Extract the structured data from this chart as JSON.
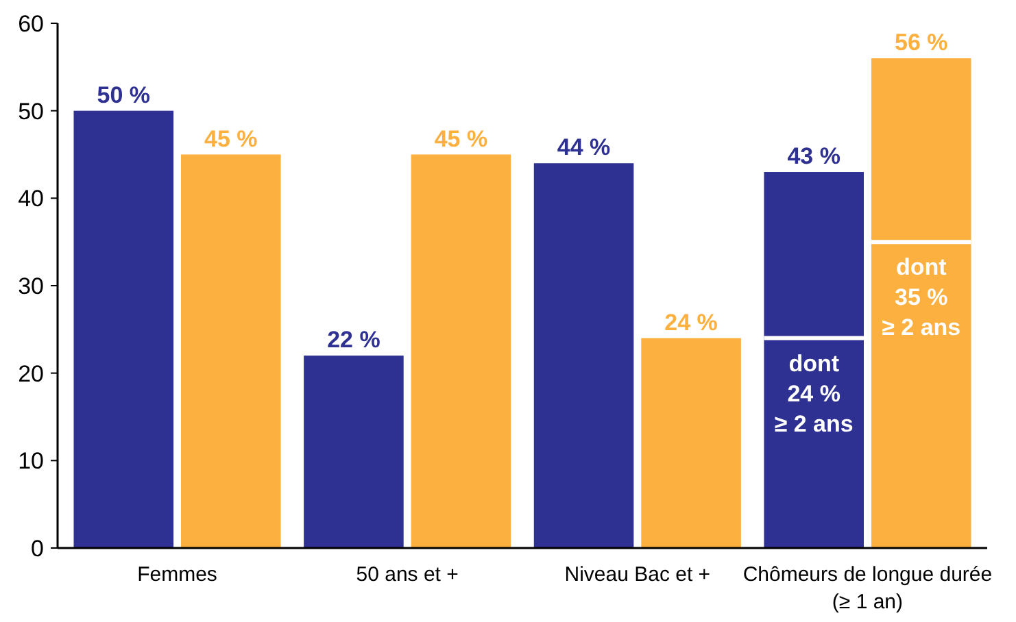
{
  "chart_data": {
    "type": "bar",
    "categories": [
      "Femmes",
      "50 ans et +",
      "Niveau Bac et +",
      "Chômeurs de longue durée (≥ 1 an)"
    ],
    "series": [
      {
        "color": "#2e3192",
        "values": [
          50,
          22,
          44,
          43
        ],
        "value_labels": [
          "50 %",
          "22 %",
          "44 %",
          "43 %"
        ]
      },
      {
        "color": "#fbb040",
        "values": [
          45,
          45,
          24,
          56
        ],
        "value_labels": [
          "45 %",
          "45 %",
          "24 %",
          "56 %"
        ]
      }
    ],
    "ylim": [
      0,
      60
    ],
    "yticks": [
      0,
      10,
      20,
      30,
      40,
      50,
      60
    ],
    "grid": false,
    "annotations": [
      {
        "text": "dont\n24 %\n≥ 2 ans",
        "x": "Chômeurs de longue durée (≥ 1 an)",
        "y": 24
      },
      {
        "text": "dont\n35 %\n≥ 2 ans",
        "x": "Chômeurs de longue durée (≥ 1 an)",
        "y": 35
      }
    ]
  }
}
